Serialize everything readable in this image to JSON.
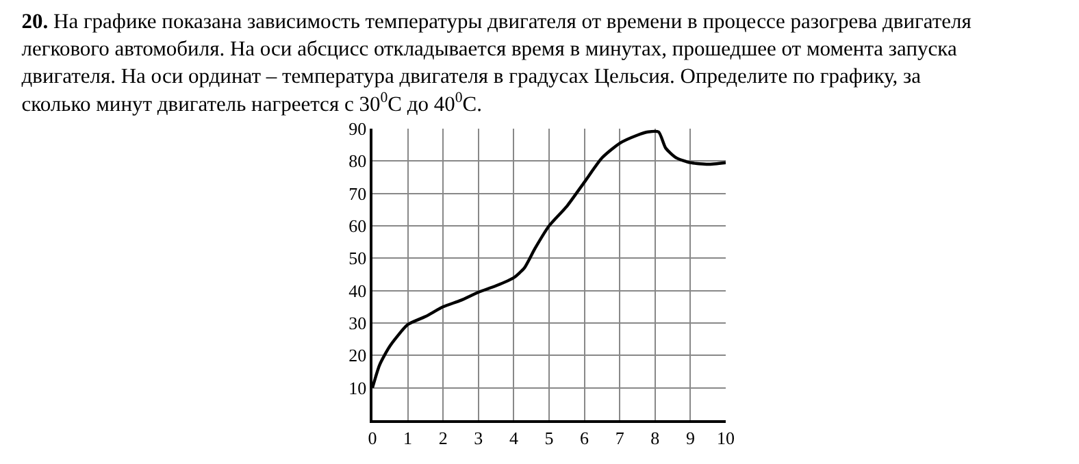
{
  "chart_data": {
    "type": "line",
    "title": "20. На графике показана зависимость температуры двигателя от времени в процессе разогрева двигателя\nлегкового автомобиля. На оси абсцисс откладывается время в минутах, прошедшее от момента запуска\nдвигателя. На оси ординат – температура двигателя в градусах Цельсия. Определите по графику, за\nсколько минут двигатель нагреется с 30$^{0}$С до 40$^{0}$С.",
    "x": [
      0,
      0.2,
      0.5,
      1,
      1.5,
      2,
      2.5,
      3,
      3.5,
      4,
      4.3,
      4.6,
      5,
      5.5,
      6,
      6.5,
      7,
      7.5,
      7.8,
      8.1,
      8.3,
      8.6,
      9,
      9.5,
      10
    ],
    "series": [
      {
        "color": "#000000",
        "values": [
          10,
          17,
          23,
          29.5,
          32,
          35,
          37,
          39.5,
          41.5,
          44,
          47,
          53,
          60,
          66,
          73.5,
          81,
          85.5,
          88,
          89,
          89,
          84,
          81,
          79.5,
          79,
          79.5
        ]
      }
    ],
    "xlim": [
      0,
      10
    ],
    "xticks": [
      0,
      1,
      2,
      3,
      4,
      5,
      6,
      7,
      8,
      9,
      10
    ],
    "ylim": [
      0,
      90
    ],
    "yticks": [
      {
        "value": 0,
        "label": null
      },
      10,
      20,
      30,
      40,
      50,
      60,
      70,
      80,
      90
    ],
    "grid": true,
    "marker": "none",
    "line_style": "solid"
  }
}
